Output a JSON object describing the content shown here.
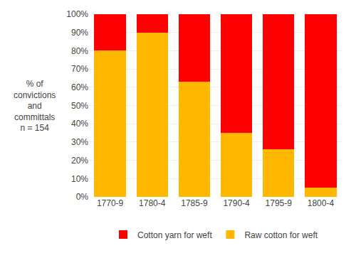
{
  "chart_data": {
    "type": "bar",
    "stacked": true,
    "categories": [
      "1770-9",
      "1780-4",
      "1785-9",
      "1790-4",
      "1795-9",
      "1800-4"
    ],
    "series": [
      {
        "name": "Raw cotton for weft",
        "color": "#FFB800",
        "values": [
          80,
          90,
          63,
          35,
          26,
          5
        ]
      },
      {
        "name": "Cotton yarn for weft",
        "color": "#FF0000",
        "values": [
          20,
          10,
          37,
          65,
          74,
          95
        ]
      }
    ],
    "ylabel": "% of\nconvictions\nand\ncommittals\nn = 154",
    "ylim": [
      0,
      100
    ],
    "yticks": [
      {
        "value": 0,
        "label": "0%"
      },
      {
        "value": 10,
        "label": "10%"
      },
      {
        "value": 20,
        "label": "20%"
      },
      {
        "value": 30,
        "label": "30%"
      },
      {
        "value": 40,
        "label": "40%"
      },
      {
        "value": 50,
        "label": "50%"
      },
      {
        "value": 60,
        "label": "60%"
      },
      {
        "value": 70,
        "label": "70%"
      },
      {
        "value": 80,
        "label": "80%"
      },
      {
        "value": 90,
        "label": "90%"
      },
      {
        "value": 100,
        "label": "100%"
      }
    ],
    "grid": true,
    "legend": "bottom"
  }
}
